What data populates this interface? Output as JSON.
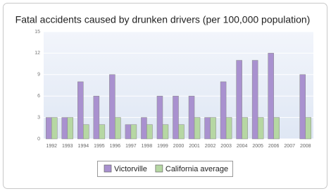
{
  "chart_data": {
    "type": "bar",
    "title": "Fatal accidents caused by drunken drivers (per 100,000 population)",
    "categories": [
      "1992",
      "1993",
      "1994",
      "1995",
      "1996",
      "1997",
      "1998",
      "1999",
      "2000",
      "2001",
      "2002",
      "2003",
      "2004",
      "2005",
      "2006",
      "2007",
      "2008"
    ],
    "series": [
      {
        "name": "Victorville",
        "color": "#a991cf",
        "values": [
          3,
          3,
          8,
          6,
          9,
          2,
          3,
          6,
          6,
          6,
          3,
          8,
          11,
          11,
          12,
          null,
          9
        ]
      },
      {
        "name": "California average",
        "color": "#b6d7a3",
        "values": [
          3,
          3,
          2,
          2,
          3,
          2,
          2,
          2,
          2,
          3,
          3,
          3,
          3,
          3,
          3,
          null,
          3
        ]
      }
    ],
    "ylim": [
      0,
      15
    ],
    "yticks": [
      0,
      3,
      6,
      9,
      12,
      15
    ],
    "grid": true
  }
}
